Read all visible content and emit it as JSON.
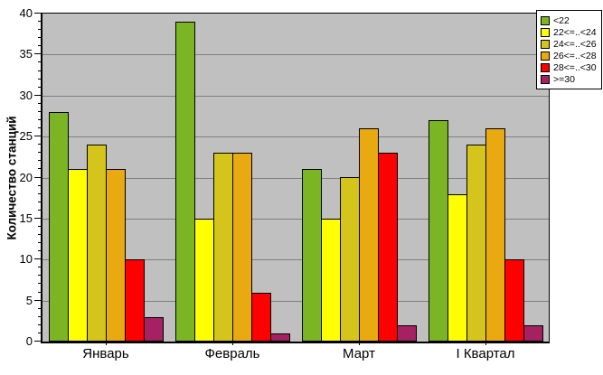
{
  "chart_data": {
    "type": "bar",
    "title": "",
    "xlabel": "",
    "ylabel": "Количество станций",
    "ylim": [
      0,
      40
    ],
    "yticks": [
      0,
      5,
      10,
      15,
      20,
      25,
      30,
      35,
      40
    ],
    "y_minor_step": 1,
    "grid": true,
    "gridline_color": "#808080",
    "plot_bg": "#c0c0c0",
    "legend_position": "top-right",
    "categories": [
      "Январь",
      "Февраль",
      "Март",
      "I Квартал"
    ],
    "series": [
      {
        "name": "<22",
        "color": "#7bb524",
        "values": [
          28,
          39,
          21,
          27
        ]
      },
      {
        "name": "22<=..<24",
        "color": "#ffff00",
        "values": [
          21,
          15,
          15,
          18
        ]
      },
      {
        "name": "24<=..<26",
        "color": "#d5c41b",
        "values": [
          24,
          23,
          20,
          24
        ]
      },
      {
        "name": "26<=..<28",
        "color": "#e9a911",
        "values": [
          21,
          23,
          26,
          26
        ]
      },
      {
        "name": "28<=..<30",
        "color": "#ff0000",
        "values": [
          10,
          6,
          23,
          10
        ]
      },
      {
        "name": ">=30",
        "color": "#a52161",
        "values": [
          3,
          1,
          2,
          2
        ]
      }
    ]
  }
}
